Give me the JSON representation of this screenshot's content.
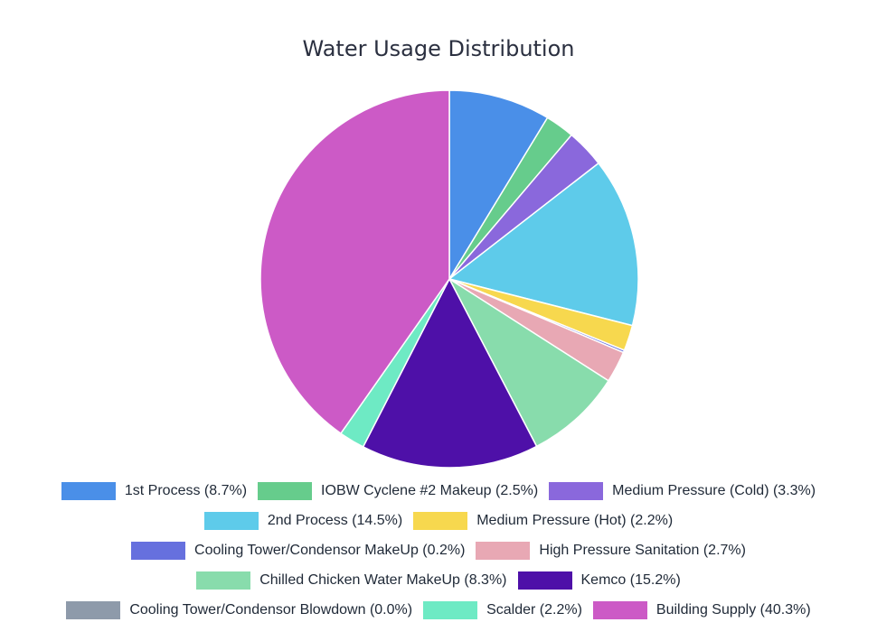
{
  "chart_data": {
    "type": "pie",
    "title": "Water Usage Distribution",
    "slices": [
      {
        "label": "1st Process",
        "percent": 8.7,
        "color": "#4a8fe8"
      },
      {
        "label": "IOBW Cyclene #2 Makeup",
        "percent": 2.5,
        "color": "#66cc8c"
      },
      {
        "label": "Medium Pressure (Cold)",
        "percent": 3.3,
        "color": "#8a68dc"
      },
      {
        "label": "2nd Process",
        "percent": 14.5,
        "color": "#5ecbea"
      },
      {
        "label": "Medium Pressure (Hot)",
        "percent": 2.2,
        "color": "#f7d84e"
      },
      {
        "label": "Cooling Tower/Condensor MakeUp",
        "percent": 0.2,
        "color": "#6670de"
      },
      {
        "label": "High Pressure Sanitation",
        "percent": 2.7,
        "color": "#e8a8b4"
      },
      {
        "label": "Chilled Chicken Water MakeUp",
        "percent": 8.3,
        "color": "#88dcac"
      },
      {
        "label": "Kemco",
        "percent": 15.2,
        "color": "#4e10a8"
      },
      {
        "label": "Cooling Tower/Condensor Blowdown",
        "percent": 0.0,
        "color": "#8e9aaa"
      },
      {
        "label": "Scalder",
        "percent": 2.2,
        "color": "#6eeac4"
      },
      {
        "label": "Building Supply",
        "percent": 40.3,
        "color": "#cc5ac6"
      }
    ],
    "legend": {
      "position": "bottom",
      "items": [
        "1st Process (8.7%)",
        "IOBW Cyclene #2 Makeup (2.5%)",
        "Medium Pressure (Cold) (3.3%)",
        "2nd Process (14.5%)",
        "Medium Pressure (Hot) (2.2%)",
        "Cooling Tower/Condensor MakeUp (0.2%)",
        "High Pressure Sanitation (2.7%)",
        "Chilled Chicken Water MakeUp (8.3%)",
        "Kemco (15.2%)",
        "Cooling Tower/Condensor Blowdown (0.0%)",
        "Scalder (2.2%)",
        "Building Supply (40.3%)"
      ]
    }
  }
}
